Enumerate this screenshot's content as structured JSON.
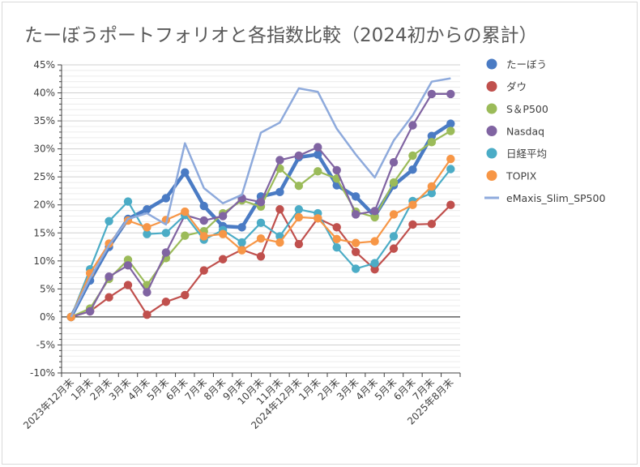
{
  "chart_data": {
    "type": "line",
    "title": "たーぼうポートフォリオと各指数比較（2024初からの累計）",
    "categories": [
      "2023年12月末",
      "1月末",
      "2月末",
      "3月末",
      "4月末",
      "5月末",
      "6月末",
      "7月末",
      "8月末",
      "9月末",
      "10月末",
      "11月末",
      "2024年12月末",
      "1月末",
      "2月末",
      "3月末",
      "4月末",
      "5月末",
      "6月末",
      "7月末",
      "2025年8月末"
    ],
    "yticks": [
      "45%",
      "40%",
      "35%",
      "30%",
      "25%",
      "20%",
      "15%",
      "10%",
      "5%",
      "0%",
      "-5%",
      "-10%"
    ],
    "ylim": [
      -10,
      45
    ],
    "grid": true,
    "legend_position": "right",
    "series": [
      {
        "name": "たーぼう",
        "color": "#4a7bc4",
        "values": [
          0,
          6.5,
          12.5,
          17.5,
          19.2,
          21.2,
          25.8,
          19.8,
          16.2,
          16.0,
          21.5,
          22.3,
          28.5,
          29.0,
          23.5,
          21.5,
          18.0,
          23.5,
          26.3,
          32.3,
          34.5
        ]
      },
      {
        "name": "ダウ",
        "color": "#c0504d",
        "values": [
          0,
          1.0,
          3.5,
          5.7,
          0.4,
          2.7,
          3.9,
          8.3,
          10.3,
          12.0,
          10.8,
          19.2,
          13.0,
          17.6,
          16.0,
          11.6,
          8.5,
          12.2,
          16.5,
          16.6,
          20.0
        ]
      },
      {
        "name": "S＆P500",
        "color": "#9bbb59",
        "values": [
          0,
          1.5,
          6.8,
          10.2,
          5.7,
          10.5,
          14.5,
          15.3,
          18.5,
          20.8,
          19.7,
          26.5,
          23.4,
          26.0,
          24.7,
          18.8,
          17.8,
          24.0,
          28.8,
          31.2,
          33.2
        ]
      },
      {
        "name": "Nasdaq",
        "color": "#8064a2",
        "values": [
          0,
          1.0,
          7.2,
          9.2,
          4.4,
          11.5,
          18.2,
          17.2,
          18.0,
          21.2,
          20.5,
          28.0,
          28.8,
          30.3,
          26.2,
          18.3,
          18.9,
          27.6,
          34.2,
          39.8,
          39.8
        ]
      },
      {
        "name": "日経平均",
        "color": "#4bacc6",
        "values": [
          0,
          8.5,
          17.1,
          20.6,
          14.8,
          15.0,
          18.2,
          13.8,
          15.5,
          13.3,
          16.8,
          14.4,
          19.2,
          18.5,
          12.4,
          8.6,
          9.6,
          14.4,
          20.7,
          22.1,
          26.4
        ]
      },
      {
        "name": "TOPIX",
        "color": "#f79646",
        "values": [
          0,
          7.8,
          13.1,
          17.2,
          16.0,
          17.3,
          18.8,
          14.4,
          14.8,
          11.9,
          14.0,
          13.3,
          17.8,
          17.6,
          13.9,
          13.2,
          13.5,
          18.3,
          20.0,
          23.3,
          28.2
        ]
      },
      {
        "name": "eMaxis_Slim_SP500",
        "color": "#8eaadc",
        "values": [
          0,
          6.9,
          12.8,
          17.5,
          18.5,
          16.5,
          31.0,
          23.0,
          20.3,
          21.8,
          32.9,
          34.7,
          40.8,
          40.2,
          33.6,
          29.0,
          24.9,
          31.5,
          36.0,
          42.0,
          42.6
        ]
      }
    ]
  }
}
